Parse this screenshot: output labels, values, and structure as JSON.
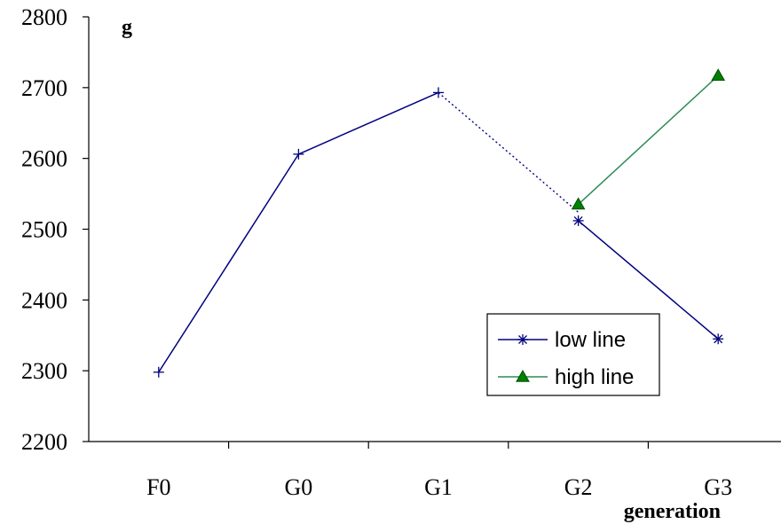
{
  "chart_data": {
    "type": "line",
    "title": "",
    "ylabel": "g",
    "xlabel": "generation",
    "categories": [
      "F0",
      "G0",
      "G1",
      "G2",
      "G3"
    ],
    "ylim": [
      2200,
      2800
    ],
    "yticks": [
      2200,
      2300,
      2400,
      2500,
      2600,
      2700,
      2800
    ],
    "grid": false,
    "series": [
      {
        "name": "low line",
        "color": "#000080",
        "marker": "asterisk",
        "values": [
          2298,
          2606,
          2693,
          2512,
          2345
        ]
      },
      {
        "name": "high line",
        "color": "#2E8B57",
        "marker_color": "#008000",
        "marker": "triangle",
        "values": [
          null,
          null,
          null,
          2535,
          2717
        ]
      }
    ],
    "connector": {
      "style": "dashed",
      "color": "#000080",
      "from": [
        "G1",
        2693
      ],
      "to": [
        "G2",
        2524
      ]
    },
    "legend": {
      "position": "bottom-right",
      "entries": [
        "low line",
        "high line"
      ]
    }
  }
}
